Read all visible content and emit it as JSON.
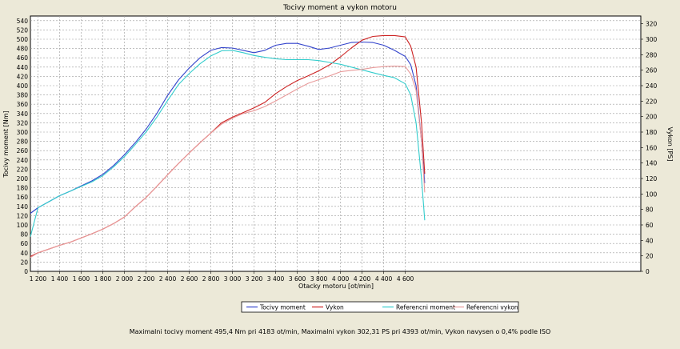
{
  "chart_data": {
    "type": "line",
    "title": "Tocivy moment a vykon motoru",
    "xlabel": "Otacky motoru [ot/min]",
    "ylabel_left": "Tocivy moment [Nm]",
    "ylabel_right": "Vykon [PS]",
    "xlim": [
      1130,
      6780
    ],
    "ylim_left": [
      0,
      550
    ],
    "ylim_right": [
      0,
      330
    ],
    "x_ticks": [
      {
        "value": 1200,
        "label": "1 200"
      },
      {
        "value": 1400,
        "label": "1 400"
      },
      {
        "value": 1600,
        "label": "1 600"
      },
      {
        "value": 1800,
        "label": "1 800"
      },
      {
        "value": 2000,
        "label": "2 000"
      },
      {
        "value": 2200,
        "label": "2 200"
      },
      {
        "value": 2400,
        "label": "2 400"
      },
      {
        "value": 2600,
        "label": "2 600"
      },
      {
        "value": 2800,
        "label": "2 800"
      },
      {
        "value": 3000,
        "label": "3 000"
      },
      {
        "value": 3200,
        "label": "3 200"
      },
      {
        "value": 3400,
        "label": "3 400"
      },
      {
        "value": 3600,
        "label": "3 600"
      },
      {
        "value": 3800,
        "label": "3 800"
      },
      {
        "value": 4000,
        "label": "4 000"
      },
      {
        "value": 4200,
        "label": "4 200"
      },
      {
        "value": 4400,
        "label": "4 400"
      },
      {
        "value": 4600,
        "label": "4 600"
      }
    ],
    "y_left_ticks": [
      "0",
      "20",
      "40",
      "60",
      "80",
      "100",
      "120",
      "140",
      "160",
      "180",
      "200",
      "220",
      "240",
      "260",
      "280",
      "300",
      "320",
      "340",
      "360",
      "380",
      "400",
      "420",
      "440",
      "460",
      "480",
      "500",
      "520",
      "540"
    ],
    "y_right_ticks": [
      "0",
      "20",
      "40",
      "60",
      "80",
      "100",
      "120",
      "140",
      "160",
      "180",
      "200",
      "220",
      "240",
      "260",
      "280",
      "300",
      "320"
    ],
    "grid": true,
    "legend_placement": "bottom-center",
    "series": [
      {
        "name": "Tocivy moment",
        "axis": "left",
        "color": "#3344cc",
        "x": [
          1130,
          1200,
          1300,
          1400,
          1500,
          1600,
          1700,
          1800,
          1900,
          2000,
          2100,
          2200,
          2300,
          2400,
          2500,
          2600,
          2700,
          2800,
          2900,
          3000,
          3100,
          3200,
          3300,
          3400,
          3500,
          3600,
          3700,
          3800,
          3900,
          4000,
          4100,
          4200,
          4300,
          4400,
          4500,
          4600,
          4650,
          4700,
          4750,
          4780
        ],
        "y": [
          125,
          137,
          150,
          163,
          173,
          184,
          195,
          209,
          228,
          251,
          277,
          306,
          340,
          379,
          412,
          438,
          460,
          476,
          482,
          481,
          476,
          471,
          476,
          487,
          491,
          491,
          485,
          478,
          481,
          487,
          493,
          494,
          493,
          487,
          476,
          463,
          445,
          400,
          280,
          190
        ]
      },
      {
        "name": "Vykon",
        "axis": "left",
        "color": "#cc2222",
        "x": [
          1130,
          1200,
          1300,
          1400,
          1500,
          1600,
          1700,
          1800,
          1900,
          2000,
          2100,
          2200,
          2300,
          2400,
          2500,
          2600,
          2700,
          2800,
          2900,
          3000,
          3100,
          3200,
          3300,
          3400,
          3500,
          3600,
          3700,
          3800,
          3900,
          4000,
          4100,
          4200,
          4300,
          4400,
          4500,
          4600,
          4650,
          4700,
          4750,
          4780
        ],
        "y": [
          32,
          40,
          48,
          56,
          63,
          72,
          81,
          91,
          103,
          117,
          139,
          159,
          183,
          208,
          232,
          255,
          277,
          298,
          320,
          332,
          342,
          352,
          364,
          383,
          398,
          411,
          421,
          432,
          445,
          462,
          481,
          498,
          506,
          508,
          508,
          505,
          485,
          440,
          320,
          210
        ]
      },
      {
        "name": "Referencni moment",
        "axis": "left",
        "color": "#33cccc",
        "x": [
          1130,
          1200,
          1300,
          1400,
          1500,
          1600,
          1700,
          1800,
          1900,
          2000,
          2100,
          2200,
          2300,
          2400,
          2500,
          2600,
          2700,
          2800,
          2900,
          3000,
          3100,
          3200,
          3300,
          3400,
          3500,
          3600,
          3700,
          3800,
          3900,
          4000,
          4100,
          4200,
          4300,
          4400,
          4500,
          4600,
          4650,
          4700,
          4750,
          4780
        ],
        "y": [
          75,
          137,
          150,
          163,
          173,
          183,
          193,
          206,
          225,
          247,
          273,
          300,
          332,
          368,
          402,
          426,
          447,
          464,
          475,
          476,
          471,
          465,
          461,
          458,
          456,
          456,
          456,
          454,
          450,
          446,
          440,
          434,
          428,
          422,
          417,
          404,
          380,
          320,
          200,
          110
        ]
      },
      {
        "name": "Referencni vykon",
        "axis": "left",
        "color": "#e89a9a",
        "x": [
          1130,
          1200,
          1300,
          1400,
          1500,
          1600,
          1700,
          1800,
          1900,
          2000,
          2100,
          2200,
          2300,
          2400,
          2500,
          2600,
          2700,
          2800,
          2900,
          3000,
          3100,
          3200,
          3300,
          3400,
          3500,
          3600,
          3700,
          3800,
          3900,
          4000,
          4100,
          4200,
          4300,
          4400,
          4500,
          4600,
          4650,
          4700,
          4750,
          4780
        ],
        "y": [
          30,
          40,
          48,
          56,
          63,
          72,
          81,
          91,
          103,
          117,
          139,
          159,
          183,
          208,
          232,
          255,
          277,
          298,
          317,
          330,
          340,
          346,
          355,
          367,
          380,
          393,
          405,
          413,
          421,
          430,
          433,
          435,
          439,
          441,
          442,
          441,
          425,
          390,
          280,
          170
        ]
      }
    ]
  },
  "footer": {
    "summary": "Maximalni tocivy moment 495,4 Nm pri 4183 ot/min,  Maximalni vykon 302,31 PS pri 4393 ot/min,  Vykon navysen o 0,4% podle ISO"
  }
}
